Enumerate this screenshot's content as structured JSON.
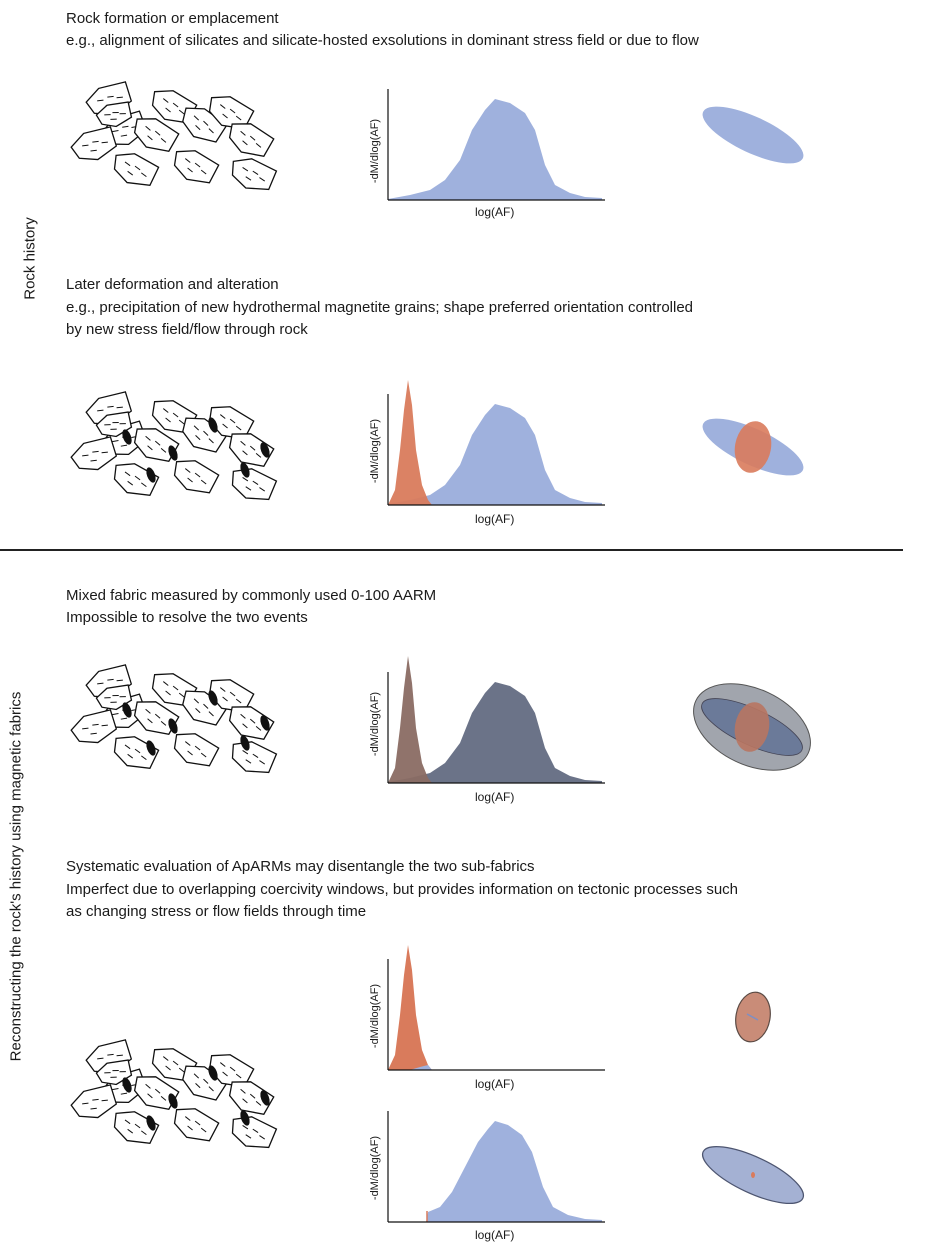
{
  "side_labels": {
    "rock_history": "Rock history",
    "reconstructing": "Reconstructing the rock's history using magnetic fabrics"
  },
  "sections": {
    "s1": {
      "title": "Rock formation or emplacement",
      "desc": "e.g., alignment of silicates and silicate-hosted exsolutions in dominant stress field or due to flow"
    },
    "s2": {
      "title": "Later deformation and alteration",
      "desc1": "e.g., precipitation of new hydrothermal magnetite grains; shape preferred orientation controlled",
      "desc2": "by new stress field/flow through rock"
    },
    "s3": {
      "title": "Mixed fabric measured by commonly used 0-100 AARM",
      "desc": "Impossible to resolve the two events"
    },
    "s4": {
      "title": "Systematic evaluation of ApARMs may disentangle the two sub-fabrics",
      "desc1": "Imperfect due to overlapping coercivity windows, but provides information on tectonic processes such",
      "desc2": "as changing stress or flow fields through time"
    }
  },
  "axes": {
    "ylabel": "-dM/dlog(AF)",
    "xlabel": "log(AF)"
  },
  "colors": {
    "blue": "#9fb1dd",
    "orange": "#d97b5c",
    "mixed": "#6b7388",
    "gray": "#8a8f99",
    "ink": "#111111"
  },
  "chart_data": [
    {
      "type": "area",
      "panel": "formation",
      "xlabel": "log(AF)",
      "ylabel": "-dM/dlog(AF)",
      "series": []
    },
    {
      "type": "area",
      "panel": "alteration",
      "xlabel": "log(AF)",
      "ylabel": "-dM/dlog(AF)",
      "series": []
    },
    {
      "type": "area",
      "panel": "mixed",
      "xlabel": "log(AF)",
      "ylabel": "-dM/dlog(AF)",
      "series": []
    },
    {
      "type": "area",
      "panel": "apaarm-low",
      "xlabel": "log(AF)",
      "ylabel": "-dM/dlog(AF)",
      "series": []
    },
    {
      "type": "area",
      "panel": "apaarm-high",
      "xlabel": "log(AF)",
      "ylabel": "-dM/dlog(AF)",
      "series": []
    }
  ]
}
